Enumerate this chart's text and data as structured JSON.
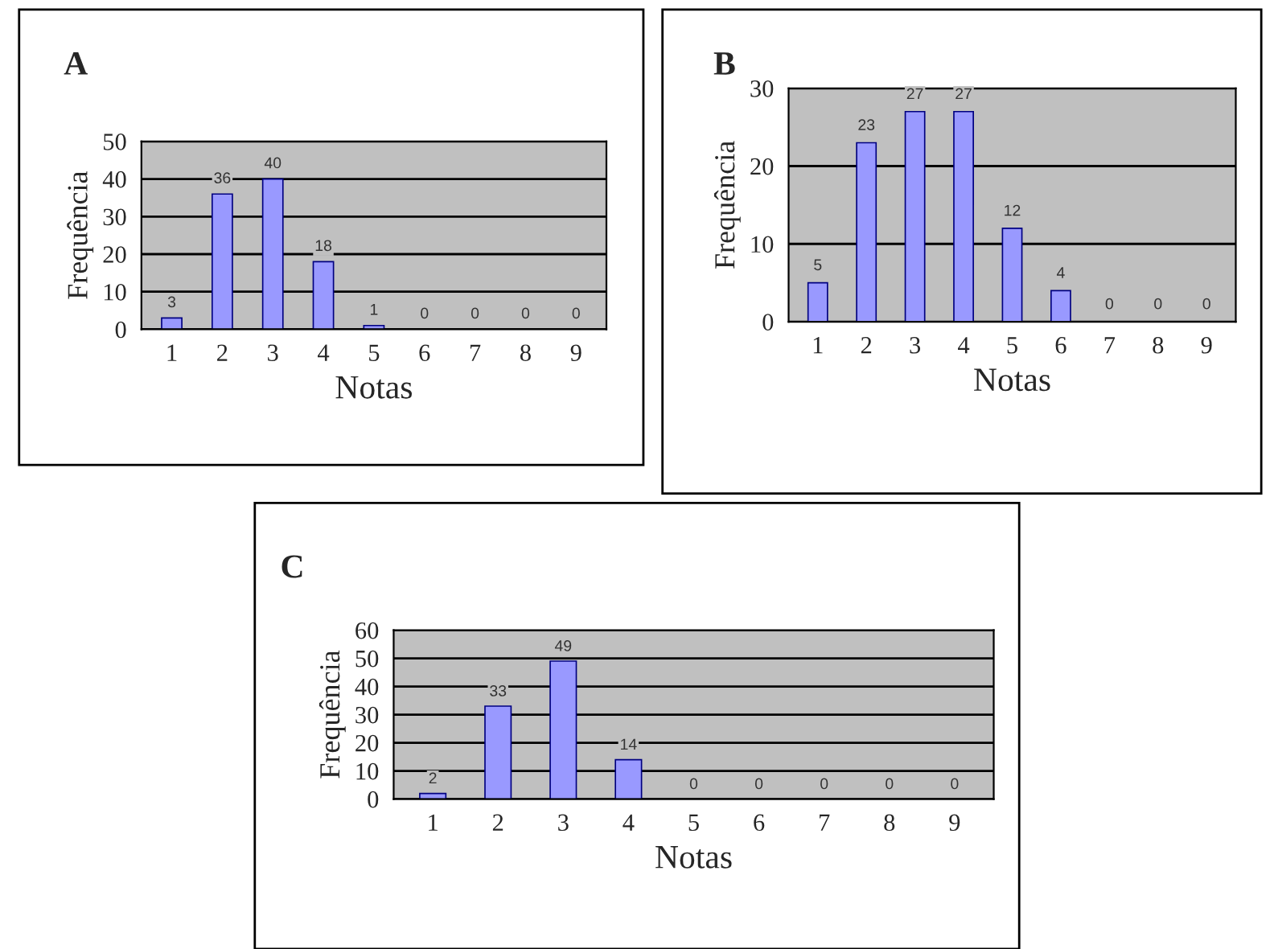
{
  "chart_data": [
    {
      "type": "bar",
      "title": "A",
      "xlabel": "Notas",
      "ylabel": "Frequência",
      "categories": [
        "1",
        "2",
        "3",
        "4",
        "5",
        "6",
        "7",
        "8",
        "9"
      ],
      "values": [
        3,
        36,
        40,
        18,
        1,
        0,
        0,
        0,
        0
      ],
      "color": "#9999ff",
      "ylim": [
        0,
        50
      ],
      "yticks": [
        0,
        10,
        20,
        30,
        40,
        50
      ],
      "grid": "y",
      "data_labels": true,
      "legend": false
    },
    {
      "type": "bar",
      "title": "B",
      "xlabel": "Notas",
      "ylabel": "Frequência",
      "categories": [
        "1",
        "2",
        "3",
        "4",
        "5",
        "6",
        "7",
        "8",
        "9"
      ],
      "values": [
        5,
        23,
        27,
        27,
        12,
        4,
        0,
        0,
        0
      ],
      "color": "#9999ff",
      "ylim": [
        0,
        30
      ],
      "yticks": [
        0,
        10,
        20,
        30
      ],
      "grid": "y",
      "data_labels": true,
      "legend": false
    },
    {
      "type": "bar",
      "title": "C",
      "xlabel": "Notas",
      "ylabel": "Frequência",
      "categories": [
        "1",
        "2",
        "3",
        "4",
        "5",
        "6",
        "7",
        "8",
        "9"
      ],
      "values": [
        2,
        33,
        49,
        14,
        0,
        0,
        0,
        0,
        0
      ],
      "color": "#9999ff",
      "ylim": [
        0,
        60
      ],
      "yticks": [
        0,
        10,
        20,
        30,
        40,
        50,
        60
      ],
      "grid": "y",
      "data_labels": true,
      "legend": false
    }
  ]
}
